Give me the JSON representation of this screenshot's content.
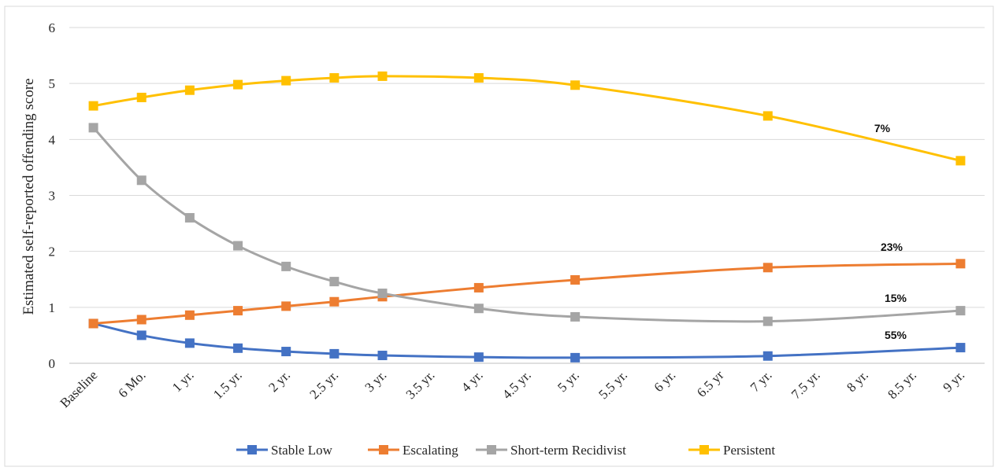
{
  "chart_data": {
    "type": "line",
    "ylabel": "Estimated self-reported offending score",
    "xlabel": "",
    "ylim": [
      0,
      6
    ],
    "yticks": [
      "0",
      "1",
      "2",
      "3",
      "4",
      "5",
      "6"
    ],
    "categories": [
      "Baseline",
      "6 Mo.",
      "1 yr.",
      "1.5 yr.",
      "2 yr.",
      "2.5 yr.",
      "3 yr.",
      "3.5 yr.",
      "4 yr.",
      "4.5 yr.",
      "5 yr.",
      "5.5 yr.",
      "6 yr.",
      "6.5 yr",
      "7 yr.",
      "7.5 yr.",
      "8 yr.",
      "8.5 yr.",
      "9 yr."
    ],
    "grid": true,
    "legend_position": "bottom",
    "series": [
      {
        "name": "Stable Low",
        "color": "#4472C4",
        "points": [
          [
            0,
            0.71
          ],
          [
            1,
            0.5
          ],
          [
            2,
            0.36
          ],
          [
            3,
            0.27
          ],
          [
            4,
            0.21
          ],
          [
            5,
            0.17
          ],
          [
            6,
            0.14
          ],
          [
            8,
            0.11
          ],
          [
            10,
            0.1
          ],
          [
            14,
            0.13
          ],
          [
            18,
            0.28
          ]
        ]
      },
      {
        "name": "Escalating",
        "color": "#ED7D31",
        "points": [
          [
            0,
            0.71
          ],
          [
            1,
            0.78
          ],
          [
            2,
            0.86
          ],
          [
            3,
            0.94
          ],
          [
            4,
            1.02
          ],
          [
            5,
            1.1
          ],
          [
            6,
            1.19
          ],
          [
            8,
            1.35
          ],
          [
            10,
            1.49
          ],
          [
            14,
            1.71
          ],
          [
            18,
            1.78
          ]
        ]
      },
      {
        "name": "Short-term Recidivist",
        "color": "#A5A5A5",
        "points": [
          [
            0,
            4.21
          ],
          [
            1,
            3.27
          ],
          [
            2,
            2.6
          ],
          [
            3,
            2.1
          ],
          [
            4,
            1.73
          ],
          [
            5,
            1.46
          ],
          [
            6,
            1.25
          ],
          [
            8,
            0.98
          ],
          [
            10,
            0.83
          ],
          [
            14,
            0.75
          ],
          [
            18,
            0.94
          ]
        ]
      },
      {
        "name": "Persistent",
        "color": "#FFC000",
        "points": [
          [
            0,
            4.6
          ],
          [
            1,
            4.75
          ],
          [
            2,
            4.88
          ],
          [
            3,
            4.98
          ],
          [
            4,
            5.05
          ],
          [
            5,
            5.1
          ],
          [
            6,
            5.13
          ],
          [
            8,
            5.1
          ],
          [
            10,
            4.97
          ],
          [
            14,
            4.42
          ],
          [
            18,
            3.62
          ]
        ]
      }
    ],
    "annotations": [
      {
        "text": "7%",
        "series": "Persistent"
      },
      {
        "text": "23%",
        "series": "Escalating"
      },
      {
        "text": "15%",
        "series": "Short-term Recidivist"
      },
      {
        "text": "55%",
        "series": "Stable Low"
      }
    ]
  }
}
